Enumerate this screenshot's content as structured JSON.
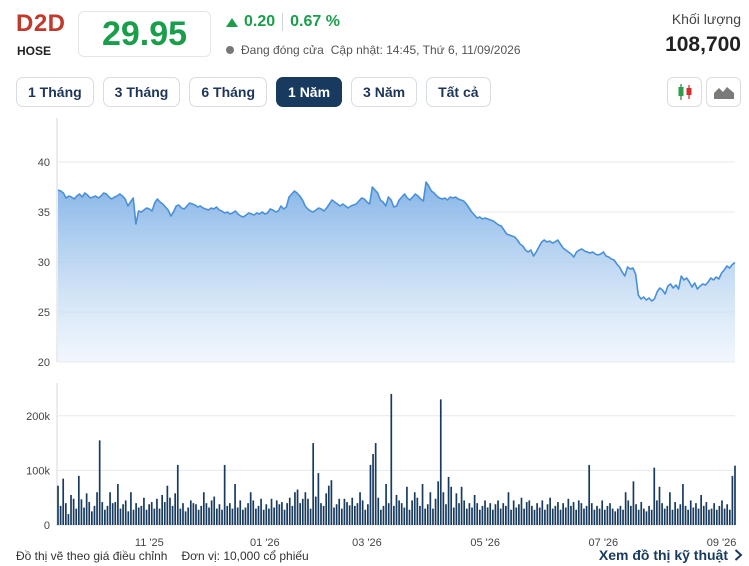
{
  "header": {
    "ticker": "D2D",
    "exchange": "HOSE",
    "price": "29.95",
    "change": "0.20",
    "change_pct": "0.67 %",
    "status": "Đang đóng cửa",
    "updated": "Cập nhật: 14:45, Thứ 6, 11/09/2026",
    "volume_label": "Khối lượng",
    "volume_value": "108,700",
    "up_color": "#1a9e4b",
    "ticker_color": "#c0392b"
  },
  "tabs": [
    {
      "label": "1 Tháng",
      "active": false
    },
    {
      "label": "3 Tháng",
      "active": false
    },
    {
      "label": "6 Tháng",
      "active": false
    },
    {
      "label": "1 Năm",
      "active": true
    },
    {
      "label": "3 Năm",
      "active": false
    },
    {
      "label": "Tất cả",
      "active": false
    }
  ],
  "chart_type_buttons": [
    {
      "name": "candlestick-icon"
    },
    {
      "name": "area-chart-icon"
    }
  ],
  "footer": {
    "note_adjusted": "Đồ thị vẽ theo giá điều chỉnh",
    "note_unit": "Đơn vị: 10,000 cổ phiếu",
    "link": "Xem đồ thị kỹ thuật"
  },
  "chart_data": [
    {
      "type": "area",
      "title": "",
      "ylim": [
        20,
        42
      ],
      "yticks": [
        20,
        25,
        30,
        35,
        40
      ],
      "grid": true,
      "color": "#4a90d9",
      "x_ticks": [
        {
          "label": "11 '25",
          "index": 34
        },
        {
          "label": "01 '26",
          "index": 77
        },
        {
          "label": "03 '26",
          "index": 115
        },
        {
          "label": "05 '26",
          "index": 159
        },
        {
          "label": "07 '26",
          "index": 203
        },
        {
          "label": "09 '26",
          "index": 247
        }
      ],
      "values": [
        37.2,
        37.1,
        36.9,
        36.4,
        36.6,
        36.5,
        36.3,
        36.6,
        36.8,
        36.5,
        36.9,
        36.7,
        36.4,
        36.5,
        36.6,
        36.4,
        36.6,
        36.9,
        36.8,
        36.5,
        36.3,
        36.5,
        36.6,
        36.8,
        36.6,
        36.3,
        35.6,
        36.0,
        36.4,
        33.8,
        35.1,
        35.0,
        35.2,
        35.4,
        35.3,
        35.1,
        35.9,
        36.3,
        36.0,
        35.8,
        35.5,
        35.2,
        34.6,
        35.0,
        35.6,
        35.7,
        35.4,
        35.3,
        35.6,
        35.9,
        35.8,
        35.7,
        35.5,
        35.6,
        35.4,
        35.3,
        35.2,
        35.4,
        35.3,
        35.5,
        35.2,
        35.1,
        34.9,
        35.0,
        34.8,
        34.9,
        35.1,
        34.8,
        34.6,
        34.5,
        34.7,
        34.9,
        34.8,
        34.7,
        34.9,
        34.8,
        35.0,
        34.8,
        34.9,
        35.3,
        35.2,
        35.0,
        35.1,
        35.6,
        35.3,
        35.5,
        36.5,
        36.8,
        37.1,
        36.9,
        36.6,
        36.2,
        35.6,
        35.3,
        35.1,
        35.0,
        35.2,
        35.4,
        35.3,
        35.1,
        35.4,
        35.8,
        36.2,
        36.0,
        35.8,
        35.6,
        35.8,
        35.6,
        35.4,
        35.6,
        35.7,
        35.8,
        36.1,
        36.4,
        36.3,
        36.0,
        35.8,
        37.5,
        37.2,
        36.9,
        36.2,
        36.0,
        35.6,
        36.5,
        36.2,
        35.5,
        35.6,
        36.2,
        36.5,
        36.8,
        36.4,
        36.2,
        36.5,
        36.8,
        36.6,
        36.3,
        36.1,
        38.0,
        37.6,
        37.1,
        36.9,
        36.6,
        36.4,
        36.3,
        36.4,
        36.2,
        36.5,
        36.4,
        36.5,
        36.3,
        36.2,
        36.1,
        35.8,
        35.4,
        35.0,
        34.7,
        34.4,
        34.5,
        34.3,
        34.4,
        34.3,
        34.2,
        34.1,
        33.9,
        33.7,
        33.6,
        33.2,
        32.8,
        32.7,
        32.6,
        32.5,
        32.2,
        31.8,
        31.6,
        31.2,
        31.0,
        31.2,
        30.6,
        31.0,
        31.5,
        32.0,
        32.2,
        32.0,
        32.1,
        31.9,
        32.0,
        32.2,
        31.8,
        31.4,
        31.2,
        31.0,
        30.8,
        30.5,
        31.0,
        31.2,
        31.3,
        31.1,
        31.0,
        30.9,
        31.0,
        30.8,
        30.7,
        30.8,
        31.0,
        30.6,
        30.5,
        30.3,
        30.2,
        29.8,
        29.5,
        29.0,
        28.6,
        29.5,
        29.3,
        29.4,
        28.8,
        26.7,
        26.3,
        26.5,
        26.2,
        26.4,
        26.1,
        26.3,
        27.0,
        27.4,
        27.2,
        26.8,
        27.6,
        27.8,
        27.4,
        27.7,
        27.3,
        28.6,
        28.2,
        28.4,
        28.0,
        27.5,
        27.9,
        27.3,
        27.6,
        27.8,
        27.7,
        28.0,
        28.4,
        28.2,
        28.5,
        28.3,
        28.9,
        29.2,
        29.6,
        29.4,
        29.75,
        29.95
      ]
    },
    {
      "type": "bar",
      "title": "",
      "ylim": [
        0,
        260000
      ],
      "yticks": [
        0,
        100000,
        200000
      ],
      "ytick_labels": [
        "0",
        "100k",
        "200k"
      ],
      "grid": true,
      "color": "#173a5e",
      "values": [
        72000,
        35000,
        85000,
        40000,
        20000,
        55000,
        48000,
        30000,
        90000,
        47000,
        32000,
        58000,
        42000,
        25000,
        35000,
        60000,
        155000,
        42000,
        28000,
        35000,
        60000,
        40000,
        42000,
        75000,
        30000,
        38000,
        45000,
        25000,
        60000,
        28000,
        40000,
        32000,
        35000,
        50000,
        28000,
        38000,
        42000,
        30000,
        48000,
        30000,
        55000,
        42000,
        72000,
        50000,
        35000,
        58000,
        110000,
        30000,
        40000,
        25000,
        32000,
        45000,
        40000,
        38000,
        28000,
        35000,
        60000,
        40000,
        32000,
        45000,
        52000,
        30000,
        38000,
        28000,
        110000,
        35000,
        40000,
        30000,
        75000,
        32000,
        45000,
        28000,
        32000,
        40000,
        60000,
        45000,
        30000,
        35000,
        48000,
        28000,
        38000,
        30000,
        48000,
        32000,
        45000,
        38000,
        42000,
        28000,
        40000,
        50000,
        35000,
        60000,
        65000,
        40000,
        48000,
        60000,
        48000,
        30000,
        150000,
        52000,
        95000,
        40000,
        35000,
        58000,
        72000,
        82000,
        32000,
        38000,
        48000,
        30000,
        48000,
        42000,
        36000,
        50000,
        35000,
        40000,
        60000,
        45000,
        28000,
        38000,
        110000,
        130000,
        150000,
        50000,
        28000,
        35000,
        75000,
        40000,
        240000,
        35000,
        55000,
        45000,
        40000,
        32000,
        70000,
        28000,
        45000,
        60000,
        50000,
        35000,
        75000,
        30000,
        38000,
        60000,
        30000,
        48000,
        80000,
        230000,
        60000,
        38000,
        88000,
        70000,
        32000,
        58000,
        40000,
        70000,
        45000,
        30000,
        40000,
        32000,
        55000,
        40000,
        28000,
        35000,
        45000,
        32000,
        40000,
        28000,
        38000,
        45000,
        30000,
        40000,
        35000,
        60000,
        28000,
        45000,
        32000,
        38000,
        50000,
        30000,
        42000,
        45000,
        35000,
        28000,
        40000,
        32000,
        45000,
        28000,
        38000,
        50000,
        30000,
        35000,
        42000,
        28000,
        40000,
        32000,
        48000,
        35000,
        42000,
        28000,
        45000,
        40000,
        30000,
        35000,
        110000,
        40000,
        28000,
        35000,
        30000,
        45000,
        28000,
        35000,
        40000,
        30000,
        25000,
        30000,
        35000,
        28000,
        60000,
        45000,
        35000,
        80000,
        38000,
        28000,
        42000,
        30000,
        25000,
        35000,
        28000,
        105000,
        45000,
        70000,
        40000,
        30000,
        35000,
        60000,
        28000,
        42000,
        30000,
        38000,
        75000,
        35000,
        28000,
        45000,
        32000,
        40000,
        30000,
        55000,
        35000,
        42000,
        28000,
        30000,
        40000,
        28000,
        35000,
        45000,
        30000,
        38000,
        28000,
        90000,
        108700
      ]
    }
  ]
}
